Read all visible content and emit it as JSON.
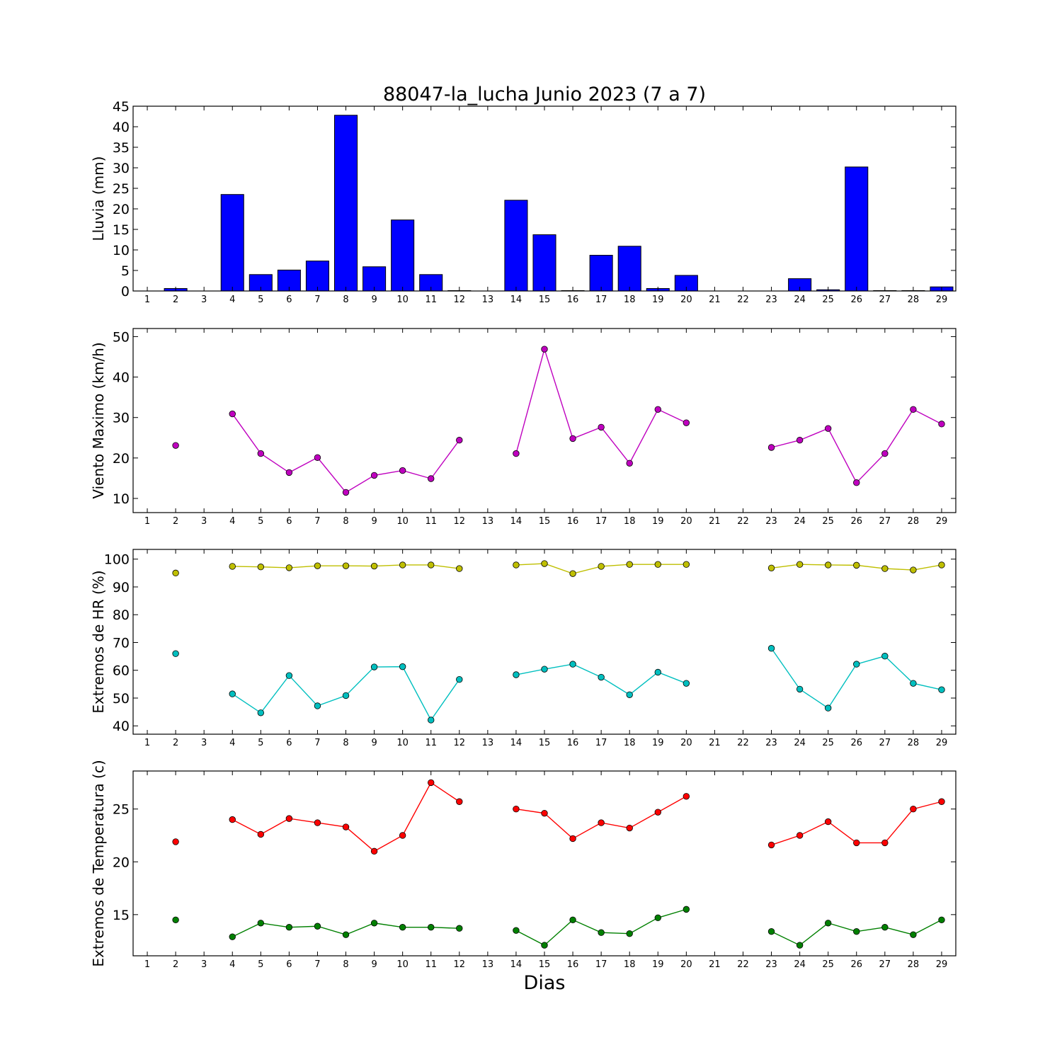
{
  "chart_data": [
    {
      "type": "bar",
      "title": "88047-la_lucha Junio 2023  (7 a 7)",
      "ylabel": "Lluvia (mm)",
      "xlabel": "",
      "ylim": [
        0,
        45
      ],
      "yticks": [
        0,
        5,
        10,
        15,
        20,
        25,
        30,
        35,
        40,
        45
      ],
      "x": [
        1,
        2,
        3,
        4,
        5,
        6,
        7,
        8,
        9,
        10,
        11,
        12,
        13,
        14,
        15,
        16,
        17,
        18,
        19,
        20,
        21,
        22,
        23,
        24,
        25,
        26,
        27,
        28,
        29
      ],
      "series": [
        {
          "color": "#0000ff",
          "values": [
            0,
            0.6,
            0,
            23.5,
            4.0,
            5.1,
            7.3,
            42.8,
            5.9,
            17.3,
            4.0,
            0.1,
            0,
            22.1,
            13.7,
            0.1,
            8.7,
            10.9,
            0.6,
            3.8,
            0,
            0,
            0,
            3.0,
            0.3,
            30.2,
            0.1,
            0.1,
            1.0
          ]
        }
      ]
    },
    {
      "type": "line",
      "ylabel": "Viento Maximo (km/h)",
      "ylim": [
        6.5,
        52
      ],
      "yticks": [
        10,
        20,
        30,
        40,
        50
      ],
      "x": [
        1,
        2,
        3,
        4,
        5,
        6,
        7,
        8,
        9,
        10,
        11,
        12,
        13,
        14,
        15,
        16,
        17,
        18,
        19,
        20,
        21,
        22,
        23,
        24,
        25,
        26,
        27,
        28,
        29
      ],
      "series": [
        {
          "color": "#bf00bf",
          "values": [
            null,
            23.1,
            null,
            30.9,
            21.1,
            16.4,
            20.1,
            11.5,
            15.7,
            16.9,
            14.9,
            24.4,
            null,
            21.1,
            46.9,
            24.8,
            27.6,
            18.7,
            32.0,
            28.7,
            null,
            null,
            22.6,
            24.4,
            27.3,
            13.9,
            21.1,
            32.0,
            28.4
          ]
        }
      ]
    },
    {
      "type": "line",
      "ylabel": "Extremos de HR (%)",
      "ylim": [
        37,
        103.5
      ],
      "yticks": [
        40,
        50,
        60,
        70,
        80,
        90,
        100
      ],
      "x": [
        1,
        2,
        3,
        4,
        5,
        6,
        7,
        8,
        9,
        10,
        11,
        12,
        13,
        14,
        15,
        16,
        17,
        18,
        19,
        20,
        21,
        22,
        23,
        24,
        25,
        26,
        27,
        28,
        29
      ],
      "series": [
        {
          "color": "#bfbf00",
          "values": [
            null,
            95.0,
            null,
            97.4,
            97.2,
            96.9,
            97.6,
            97.6,
            97.5,
            97.9,
            97.9,
            96.6,
            null,
            97.9,
            98.4,
            94.8,
            97.4,
            98.1,
            98.1,
            98.1,
            null,
            null,
            96.8,
            98.1,
            97.9,
            97.8,
            96.6,
            96.1,
            97.9
          ]
        },
        {
          "color": "#00bfbf",
          "values": [
            null,
            66.0,
            null,
            51.5,
            44.7,
            58.1,
            47.2,
            50.9,
            61.2,
            61.3,
            42.1,
            56.7,
            null,
            58.4,
            60.4,
            62.2,
            57.5,
            51.2,
            59.3,
            55.3,
            null,
            null,
            67.9,
            53.2,
            46.4,
            62.2,
            65.1,
            55.3,
            53.0
          ]
        }
      ]
    },
    {
      "type": "line",
      "ylabel": "Extremos de Temperatura (c)",
      "xlabel": "Dias",
      "ylim": [
        11.1,
        28.6
      ],
      "yticks": [
        15,
        20,
        25
      ],
      "x": [
        1,
        2,
        3,
        4,
        5,
        6,
        7,
        8,
        9,
        10,
        11,
        12,
        13,
        14,
        15,
        16,
        17,
        18,
        19,
        20,
        21,
        22,
        23,
        24,
        25,
        26,
        27,
        28,
        29
      ],
      "series": [
        {
          "color": "#ff0000",
          "values": [
            null,
            21.9,
            null,
            24.0,
            22.6,
            24.1,
            23.7,
            23.3,
            21.0,
            22.5,
            27.5,
            25.7,
            null,
            25.0,
            24.6,
            22.2,
            23.7,
            23.2,
            24.7,
            26.2,
            null,
            null,
            21.6,
            22.5,
            23.8,
            21.8,
            21.8,
            25.0,
            25.7
          ]
        },
        {
          "color": "#008000",
          "values": [
            null,
            14.5,
            null,
            12.9,
            14.2,
            13.8,
            13.9,
            13.1,
            14.2,
            13.8,
            13.8,
            13.7,
            null,
            13.5,
            12.1,
            14.5,
            13.3,
            13.2,
            14.7,
            15.5,
            null,
            null,
            13.4,
            12.1,
            14.2,
            13.4,
            13.8,
            13.1,
            14.5
          ]
        }
      ]
    }
  ]
}
